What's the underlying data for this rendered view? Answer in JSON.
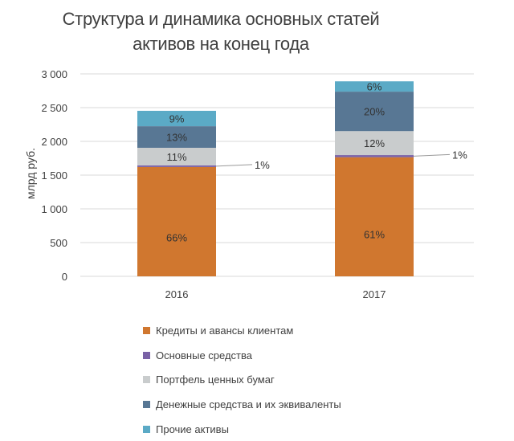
{
  "chart_data": {
    "type": "bar",
    "stacked": true,
    "title": [
      "Структура и динамика основных статей",
      "активов на конец года"
    ],
    "xlabel": "",
    "ylabel": "млрд руб.",
    "ylim": [
      0,
      3000
    ],
    "yticks": [
      0,
      500,
      1000,
      1500,
      2000,
      2500,
      3000
    ],
    "ytick_labels": [
      "0",
      "500",
      "1 000",
      "1 500",
      "2 000",
      "2 500",
      "3 000"
    ],
    "categories": [
      "2016",
      "2017"
    ],
    "grid": true,
    "legend_position": "bottom",
    "series": [
      {
        "name": "Кредиты и авансы клиентам",
        "color": "#D0772F",
        "values": [
          1620,
          1765
        ],
        "labels": [
          "66%",
          "61%"
        ]
      },
      {
        "name": "Основные средства",
        "color": "#7A62A6",
        "values": [
          25,
          32
        ],
        "labels": [
          "1%",
          "1%"
        ]
      },
      {
        "name": "Портфель ценных бумаг",
        "color": "#C9CCCD",
        "values": [
          260,
          355
        ],
        "labels": [
          "11%",
          "12%"
        ]
      },
      {
        "name": "Денежные средства и их эквиваленты",
        "color": "#587794",
        "values": [
          320,
          585
        ],
        "labels": [
          "13%",
          "20%"
        ]
      },
      {
        "name": "Прочие активы",
        "color": "#5BAAC6",
        "values": [
          228,
          153
        ],
        "labels": [
          "9%",
          "6%"
        ]
      }
    ]
  }
}
